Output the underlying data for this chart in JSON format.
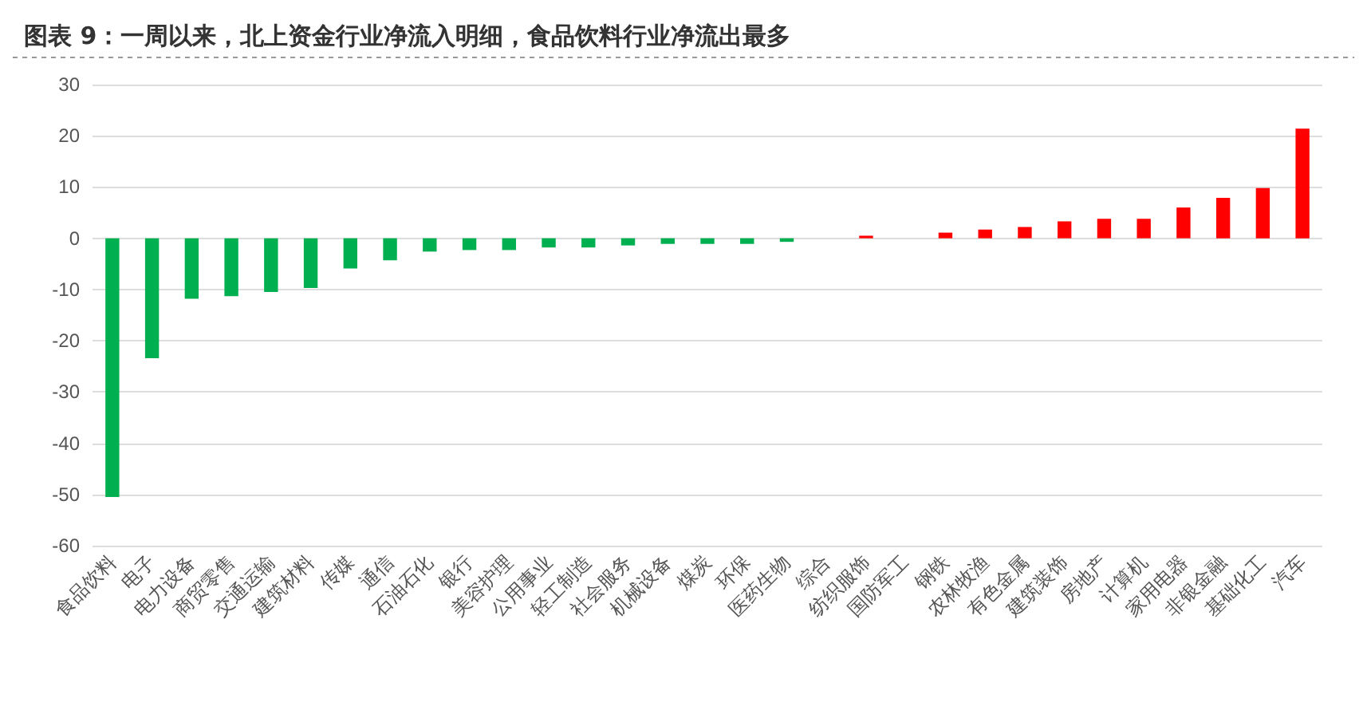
{
  "chart_data": {
    "type": "bar",
    "title": "图表 9：一周以来，北上资金行业净流入明细，食品饮料行业净流出最多",
    "categories": [
      "食品饮料",
      "电子",
      "电力设备",
      "商贸零售",
      "交通运输",
      "建筑材料",
      "传媒",
      "通信",
      "石油石化",
      "银行",
      "美容护理",
      "公用事业",
      "轻工制造",
      "社会服务",
      "机械设备",
      "煤炭",
      "环保",
      "医药生物",
      "综合",
      "纺织服饰",
      "国防军工",
      "钢铁",
      "农林牧渔",
      "有色金属",
      "建筑装饰",
      "房地产",
      "计算机",
      "家用电器",
      "非银金融",
      "基础化工",
      "汽车"
    ],
    "values": [
      -50.5,
      -23.4,
      -11.8,
      -11.3,
      -10.5,
      -9.7,
      -5.9,
      -4.3,
      -2.6,
      -2.3,
      -2.3,
      -1.8,
      -1.8,
      -1.4,
      -1.1,
      -1.1,
      -1.1,
      -0.7,
      0,
      0.5,
      0,
      1.1,
      1.7,
      2.2,
      3.3,
      3.8,
      3.8,
      6.0,
      7.9,
      9.8,
      21.4
    ],
    "colors": [
      "#00b050",
      "#00b050",
      "#00b050",
      "#00b050",
      "#00b050",
      "#00b050",
      "#00b050",
      "#00b050",
      "#00b050",
      "#00b050",
      "#00b050",
      "#00b050",
      "#00b050",
      "#00b050",
      "#00b050",
      "#00b050",
      "#00b050",
      "#00b050",
      "#00b050",
      "#ff0000",
      "#ff0000",
      "#ff0000",
      "#ff0000",
      "#ff0000",
      "#ff0000",
      "#ff0000",
      "#ff0000",
      "#ff0000",
      "#ff0000",
      "#ff0000",
      "#ff0000"
    ],
    "ylim": [
      -60,
      30
    ],
    "yticks": [
      -60,
      -50,
      -40,
      -30,
      -20,
      -10,
      0,
      10,
      20,
      30
    ],
    "grid": "y"
  }
}
